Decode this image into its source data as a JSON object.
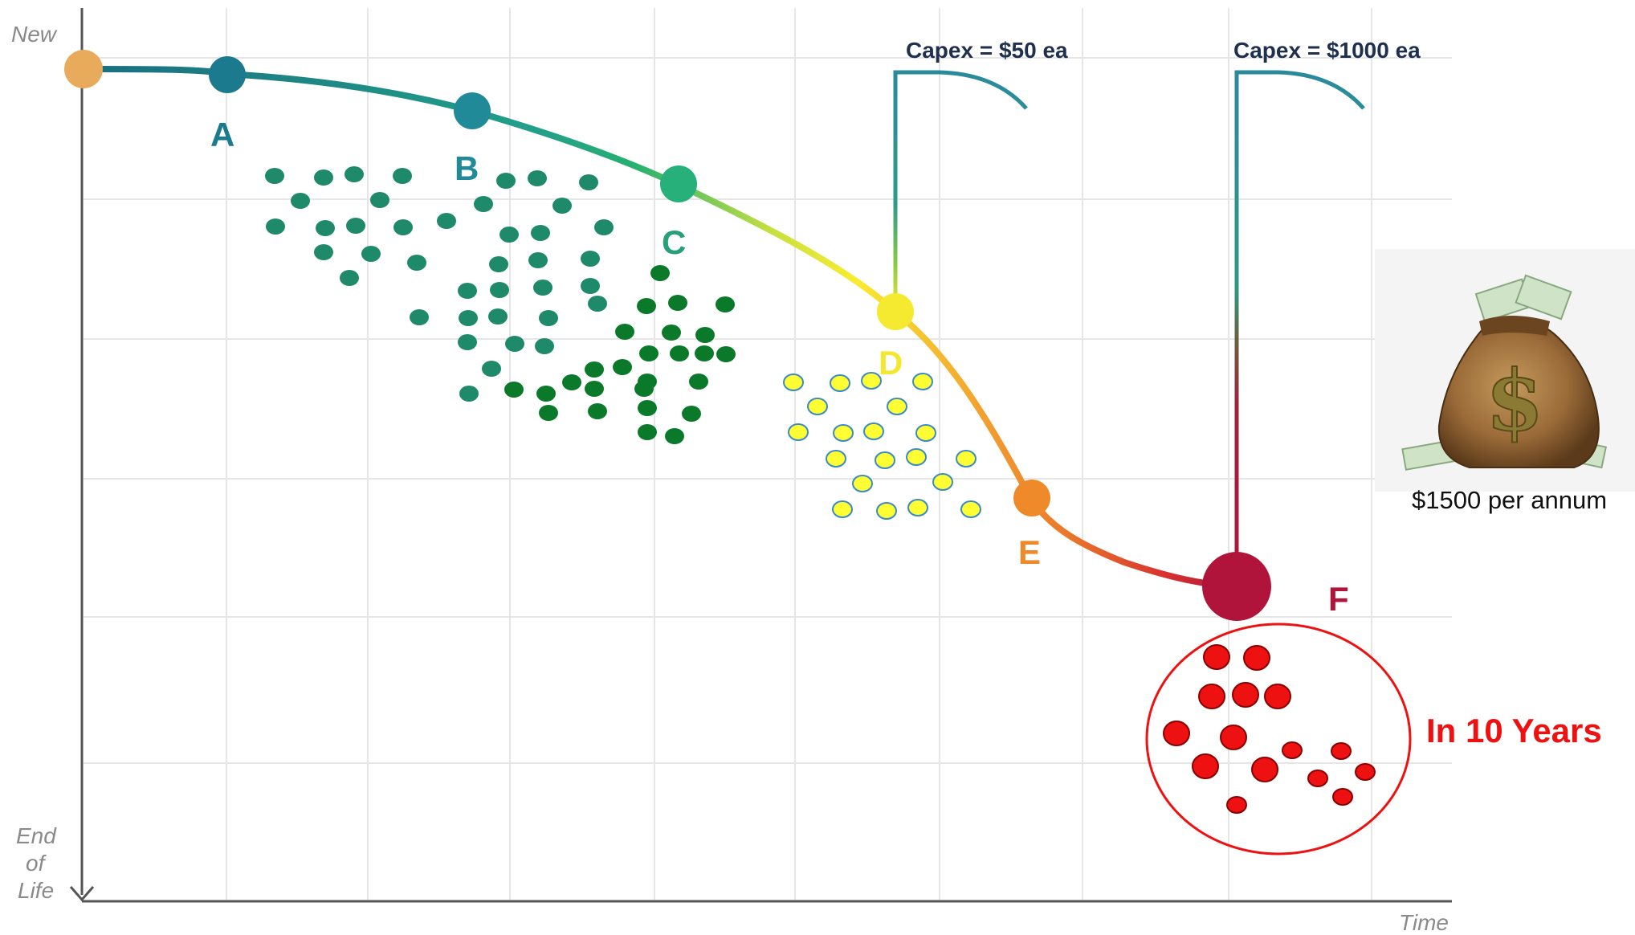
{
  "axis": {
    "y_top": "New",
    "y_bottom": [
      "End",
      "of",
      "Life"
    ],
    "x_end": "Time"
  },
  "points": [
    {
      "id": "start",
      "label": "",
      "color": "#e8ab5c"
    },
    {
      "id": "A",
      "label": "A",
      "color": "#1b7a8e"
    },
    {
      "id": "B",
      "label": "B",
      "color": "#218a99"
    },
    {
      "id": "C",
      "label": "C",
      "color": "#27b07a"
    },
    {
      "id": "D",
      "label": "D",
      "color": "#f5ea30"
    },
    {
      "id": "E",
      "label": "E",
      "color": "#ee8a2a"
    },
    {
      "id": "F",
      "label": "F",
      "color": "#b0143b"
    }
  ],
  "label_colors": {
    "A": "#1b7a8e",
    "B": "#218a99",
    "C": "#27a07a",
    "D": "#f2e830",
    "E": "#ee8a2a",
    "F": "#b0143b"
  },
  "capex": {
    "d": "Capex = $50 ea",
    "f": "Capex = $1000 ea"
  },
  "money": {
    "icon": "money-bag-icon",
    "label": "$1500 per annum"
  },
  "future": {
    "label": "In 10 Years"
  },
  "cluster_colors": {
    "teal": "#1f8a6a",
    "green": "#0a7a2a",
    "yellow": "#ffff33",
    "red": "#ee1111"
  }
}
